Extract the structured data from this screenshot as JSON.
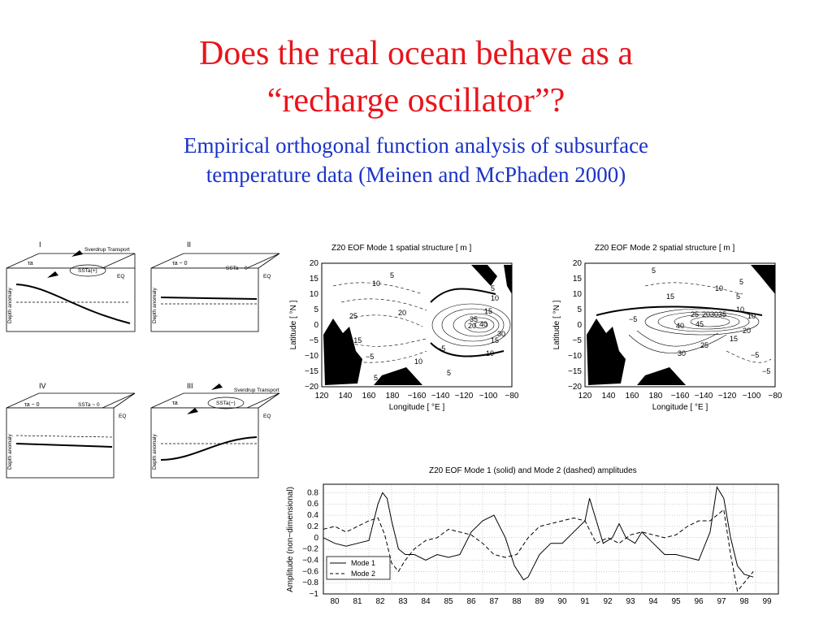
{
  "slide": {
    "title_line1": "Does the real ocean behave as a",
    "title_line2": "“recharge oscillator”?",
    "subtitle_line1": "Empirical orthogonal function analysis of subsurface",
    "subtitle_line2": "temperature data (Meinen and McPhaden 2000)"
  },
  "schematic": {
    "panels": [
      {
        "roman": "I",
        "tau": "τa",
        "sst": "SSTa(+)",
        "arrow_label": "Sverdrup Transport",
        "eq": "EQ",
        "ylabel": "Depth anomaly"
      },
      {
        "roman": "II",
        "tau": "τa ~ 0",
        "sst": "SSTa ~ 0",
        "eq": "EQ",
        "ylabel": "Depth anomaly"
      },
      {
        "roman": "IV",
        "tau": "τa ~ 0",
        "sst": "SSTa ~ 0",
        "eq": "EQ",
        "ylabel": "Depth anomaly"
      },
      {
        "roman": "III",
        "tau": "τa",
        "sst": "SSTa(−)",
        "arrow_label": "Sverdrup Transport",
        "eq": "EQ",
        "ylabel": "Depth anomaly"
      }
    ]
  },
  "maps": [
    {
      "title": "Z20 EOF Mode 1 spatial structure [ m ]",
      "xlabel": "Longitude [ °E ]",
      "ylabel": "Latitude [ °N ]",
      "xticks": [
        "120",
        "140",
        "160",
        "180",
        "−160",
        "−140",
        "−120",
        "−100",
        "−80"
      ],
      "yticks": [
        "20",
        "15",
        "10",
        "5",
        "0",
        "−5",
        "−10",
        "−15",
        "−20"
      ],
      "contour_labels": [
        "5",
        "10",
        "10",
        "15",
        "20",
        "25",
        "30",
        "35",
        "40",
        "5",
        "10",
        "10",
        "15",
        "5",
        "5",
        "10",
        "20",
        "−5",
        "−5",
        "−15"
      ]
    },
    {
      "title": "Z20 EOF Mode 2 spatial structure [ m ]",
      "xlabel": "Longitude [ °E ]",
      "ylabel": "Latitude [ °N ]",
      "xticks": [
        "120",
        "140",
        "160",
        "180",
        "−160",
        "−140",
        "−120",
        "−100",
        "−80"
      ],
      "yticks": [
        "20",
        "15",
        "10",
        "5",
        "0",
        "−5",
        "−10",
        "−15",
        "−20"
      ],
      "contour_labels": [
        "5",
        "5",
        "10",
        "15",
        "20",
        "25",
        "30",
        "35",
        "40",
        "45",
        "10",
        "5",
        "15",
        "20",
        "25",
        "30",
        "−5",
        "−5",
        "−5",
        "10"
      ]
    }
  ],
  "chart_data": {
    "type": "line",
    "title": "Z20 EOF Mode 1 (solid) and Mode 2 (dashed) amplitudes",
    "xlabel": "",
    "ylabel": "Amplitude (non−dimensional)",
    "xlim": [
      1980,
      2000
    ],
    "ylim": [
      -1,
      0.95
    ],
    "x_ticks": [
      "80",
      "81",
      "82",
      "83",
      "84",
      "85",
      "86",
      "87",
      "88",
      "89",
      "90",
      "91",
      "92",
      "93",
      "94",
      "95",
      "96",
      "97",
      "98",
      "99"
    ],
    "y_ticks": [
      "0.8",
      "0.6",
      "0.4",
      "0.2",
      "0",
      "−0.2",
      "−0.4",
      "−0.6",
      "−0.8",
      "−1"
    ],
    "grid": true,
    "legend_position": "bottom-left",
    "series": [
      {
        "name": "Mode 1",
        "style": "solid",
        "x": [
          1980.0,
          1980.5,
          1981.0,
          1981.5,
          1982.0,
          1982.4,
          1982.6,
          1982.8,
          1983.0,
          1983.3,
          1983.6,
          1984.0,
          1984.5,
          1985.0,
          1985.5,
          1986.0,
          1986.5,
          1987.0,
          1987.5,
          1988.0,
          1988.4,
          1988.8,
          1989.0,
          1989.5,
          1990.0,
          1990.5,
          1991.0,
          1991.5,
          1991.7,
          1992.0,
          1992.3,
          1992.7,
          1993.0,
          1993.3,
          1993.7,
          1994.0,
          1994.5,
          1995.0,
          1995.5,
          1996.0,
          1996.5,
          1997.0,
          1997.3,
          1997.6,
          1997.9,
          1998.2,
          1998.5,
          1998.9
        ],
        "y": [
          0.0,
          -0.1,
          -0.15,
          -0.1,
          -0.05,
          0.6,
          0.8,
          0.7,
          0.3,
          -0.2,
          -0.3,
          -0.3,
          -0.4,
          -0.3,
          -0.35,
          -0.3,
          0.1,
          0.3,
          0.4,
          0.0,
          -0.5,
          -0.75,
          -0.7,
          -0.3,
          -0.1,
          -0.1,
          0.1,
          0.3,
          0.7,
          0.3,
          -0.1,
          0.0,
          0.25,
          0.0,
          -0.1,
          0.1,
          -0.1,
          -0.3,
          -0.3,
          -0.35,
          -0.4,
          0.1,
          0.9,
          0.7,
          0.0,
          -0.5,
          -0.65,
          -0.7
        ]
      },
      {
        "name": "Mode 2",
        "style": "dashed",
        "x": [
          1980.0,
          1980.5,
          1981.0,
          1981.5,
          1982.0,
          1982.4,
          1982.7,
          1983.0,
          1983.3,
          1983.6,
          1984.0,
          1984.5,
          1985.0,
          1985.5,
          1986.0,
          1986.5,
          1987.0,
          1987.5,
          1988.0,
          1988.5,
          1989.0,
          1989.5,
          1990.0,
          1990.5,
          1991.0,
          1991.5,
          1992.0,
          1992.5,
          1993.0,
          1993.5,
          1994.0,
          1994.5,
          1995.0,
          1995.5,
          1996.0,
          1996.5,
          1997.0,
          1997.3,
          1997.6,
          1997.9,
          1998.2,
          1998.5,
          1998.9
        ],
        "y": [
          0.15,
          0.2,
          0.1,
          0.2,
          0.3,
          0.35,
          0.05,
          -0.45,
          -0.6,
          -0.4,
          -0.2,
          -0.05,
          0.0,
          0.15,
          0.1,
          0.05,
          -0.1,
          -0.3,
          -0.35,
          -0.3,
          0.0,
          0.2,
          0.25,
          0.3,
          0.35,
          0.3,
          -0.1,
          0.0,
          -0.1,
          0.05,
          0.1,
          0.05,
          0.0,
          0.05,
          0.2,
          0.3,
          0.3,
          0.4,
          0.5,
          -0.3,
          -0.95,
          -0.8,
          -0.6
        ]
      }
    ]
  }
}
